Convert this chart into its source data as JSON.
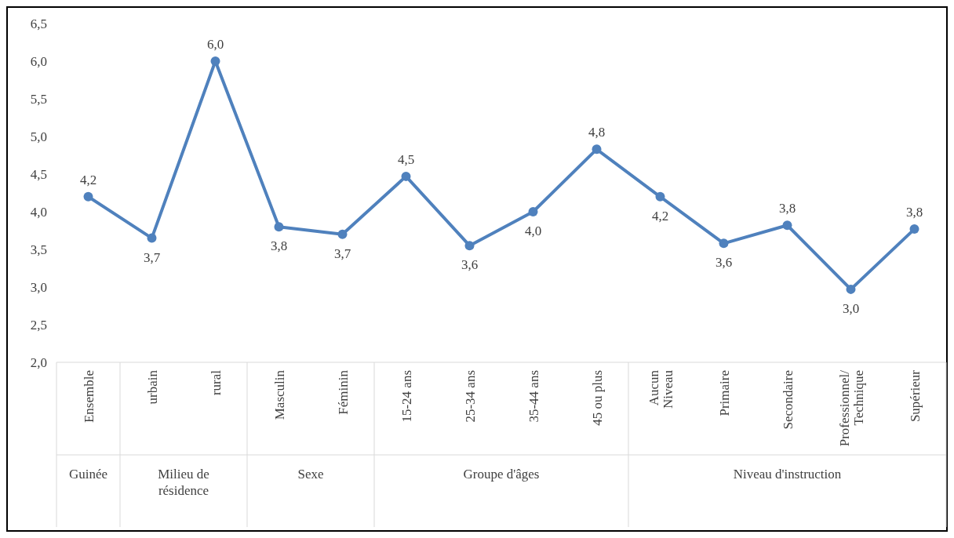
{
  "chart_data": {
    "type": "line",
    "categories": [
      "Ensemble",
      "urbain",
      "rural",
      "Masculin",
      "Féminin",
      "15-24 ans",
      "25-34 ans",
      "35-44 ans",
      "45 ou plus",
      "Aucun Niveau",
      "Primaire",
      "Secondaire",
      "Professionnel/ Technique",
      "Supérieur"
    ],
    "series": [
      {
        "color": "#4f81bd",
        "values": [
          4.2,
          3.65,
          6.0,
          3.8,
          3.7,
          4.47,
          3.55,
          4.0,
          4.83,
          4.2,
          3.58,
          3.82,
          2.97,
          3.77
        ],
        "value_labels": [
          "4,2",
          "3,7",
          "6,0",
          "3,8",
          "3,7",
          "4,5",
          "3,6",
          "4,0",
          "4,8",
          "4,2",
          "3,6",
          "3,8",
          "3,0",
          "3,8"
        ]
      }
    ],
    "ylim": [
      2.0,
      6.5
    ],
    "yticks": [
      {
        "value": 2.0,
        "label": "2,0"
      },
      {
        "value": 2.5,
        "label": "2,5"
      },
      {
        "value": 3.0,
        "label": "3,0"
      },
      {
        "value": 3.5,
        "label": "3,5"
      },
      {
        "value": 4.0,
        "label": "4,0"
      },
      {
        "value": 4.5,
        "label": "4,5"
      },
      {
        "value": 5.0,
        "label": "5,0"
      },
      {
        "value": 5.5,
        "label": "5,5"
      },
      {
        "value": 6.0,
        "label": "6,0"
      },
      {
        "value": 6.5,
        "label": "6,5"
      }
    ],
    "annotations": [
      "Guinée",
      "Milieu de résidence",
      "Sexe",
      "Groupe d'âges",
      "Niveau d'instruction"
    ],
    "grid": false,
    "marker": "circle",
    "line_style": "solid"
  }
}
